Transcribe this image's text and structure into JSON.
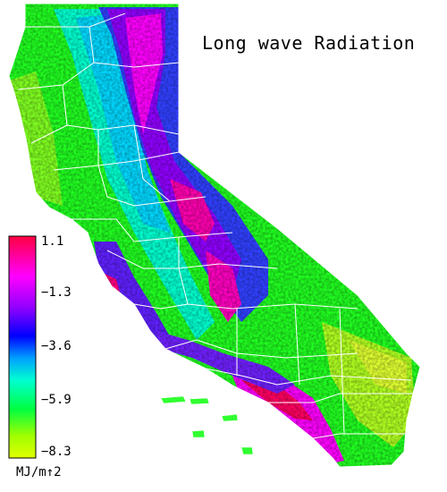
{
  "title": "Long wave Radiation",
  "legend": {
    "ticks": [
      "1.1",
      "−1.3",
      "−3.6",
      "−5.9",
      "−8.3"
    ],
    "unit": "MJ/m↑2",
    "colors": [
      "#ff0040",
      "#ff00ff",
      "#8a00ff",
      "#0000ff",
      "#00a0ff",
      "#00ffd0",
      "#00ff40",
      "#a0ff00",
      "#e0ff00"
    ]
  },
  "map": {
    "region": "California",
    "palette": {
      "high": "#ff0080",
      "magenta": "#ff00ff",
      "purple": "#8a00ff",
      "blue": "#3040ff",
      "cyan": "#00e0ff",
      "teal": "#00ffb0",
      "green": "#10ff10",
      "lime": "#90ff10",
      "yellow": "#e0f020",
      "border": "#ffffff"
    }
  }
}
